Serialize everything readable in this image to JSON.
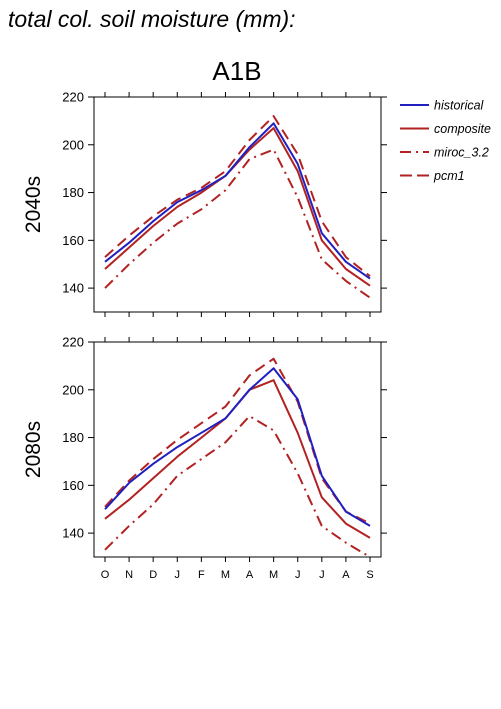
{
  "figure": {
    "title": "total col. soil moisture (mm):",
    "scenario": "A1B"
  },
  "chart_data": [
    {
      "type": "line",
      "panel_label": "2040s",
      "categories": [
        "O",
        "N",
        "D",
        "J",
        "F",
        "M",
        "A",
        "M",
        "J",
        "J",
        "A",
        "S"
      ],
      "ylim": [
        130,
        220
      ],
      "yticks": [
        140,
        160,
        180,
        200,
        220
      ],
      "grid": false,
      "legend_position": "right",
      "series": [
        {
          "name": "historical",
          "color": "#2020c0",
          "dash": "solid",
          "values": [
            151,
            159,
            168,
            176,
            181,
            187,
            199,
            209,
            192,
            163,
            151,
            144
          ]
        },
        {
          "name": "composite",
          "color": "#b22222",
          "dash": "solid",
          "values": [
            148,
            157,
            166,
            174,
            180,
            187,
            198,
            207,
            189,
            160,
            148,
            141
          ]
        },
        {
          "name": "miroc_3.2",
          "color": "#b22222",
          "dash": "dashdot",
          "values": [
            140,
            150,
            159,
            167,
            173,
            181,
            194,
            198,
            178,
            152,
            143,
            136
          ]
        },
        {
          "name": "pcm1",
          "color": "#b22222",
          "dash": "dashed",
          "values": [
            153,
            162,
            170,
            177,
            182,
            189,
            202,
            212,
            196,
            168,
            153,
            145
          ]
        }
      ]
    },
    {
      "type": "line",
      "panel_label": "2080s",
      "categories": [
        "O",
        "N",
        "D",
        "J",
        "F",
        "M",
        "A",
        "M",
        "J",
        "J",
        "A",
        "S"
      ],
      "ylim": [
        130,
        220
      ],
      "yticks": [
        140,
        160,
        180,
        200,
        220
      ],
      "grid": false,
      "series": [
        {
          "name": "historical",
          "color": "#2020c0",
          "dash": "solid",
          "values": [
            150,
            161,
            169,
            176,
            182,
            188,
            200,
            209,
            196,
            164,
            149,
            143
          ]
        },
        {
          "name": "composite",
          "color": "#b22222",
          "dash": "solid",
          "values": [
            146,
            154,
            163,
            172,
            180,
            188,
            200,
            204,
            182,
            155,
            144,
            138
          ]
        },
        {
          "name": "miroc_3.2",
          "color": "#b22222",
          "dash": "dashdot",
          "values": [
            133,
            143,
            152,
            164,
            171,
            178,
            189,
            183,
            165,
            143,
            136,
            130
          ]
        },
        {
          "name": "pcm1",
          "color": "#b22222",
          "dash": "dashed",
          "values": [
            151,
            162,
            171,
            179,
            186,
            193,
            206,
            213,
            195,
            163,
            149,
            144
          ]
        }
      ]
    }
  ]
}
